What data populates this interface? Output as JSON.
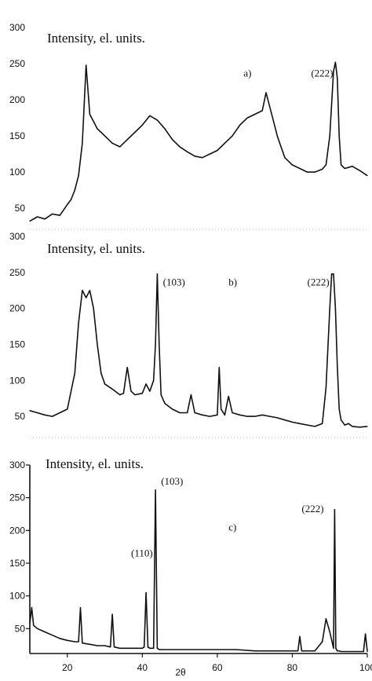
{
  "chart_data": [
    {
      "type": "line",
      "panel_label": "a)",
      "ylabel": "Intensity, el. units.",
      "yticks": [
        50,
        100,
        150,
        200,
        250,
        300
      ],
      "xlim": [
        10,
        100
      ],
      "ylim": [
        25,
        310
      ],
      "annotations": [
        {
          "text": "a)",
          "x": 67,
          "y": 232
        },
        {
          "text": "(222)",
          "x": 85,
          "y": 232
        }
      ],
      "series": [
        {
          "x": [
            10,
            12,
            14,
            16,
            18,
            20,
            21,
            22,
            23,
            24,
            25,
            26,
            27,
            28,
            30,
            32,
            34,
            36,
            38,
            40,
            42,
            44,
            46,
            48,
            50,
            52,
            54,
            56,
            58,
            60,
            62,
            64,
            66,
            68,
            70,
            72,
            73,
            74,
            75,
            76,
            78,
            80,
            82,
            84,
            86,
            88,
            89,
            90,
            91,
            91.5,
            92,
            92.5,
            93,
            94,
            96,
            98,
            100
          ],
          "y": [
            32,
            38,
            35,
            42,
            40,
            55,
            62,
            75,
            95,
            140,
            248,
            180,
            170,
            160,
            150,
            140,
            135,
            145,
            155,
            165,
            178,
            172,
            160,
            145,
            135,
            128,
            122,
            120,
            125,
            130,
            140,
            150,
            165,
            175,
            180,
            185,
            210,
            190,
            170,
            150,
            120,
            110,
            105,
            100,
            100,
            104,
            110,
            150,
            240,
            252,
            230,
            150,
            110,
            105,
            108,
            102,
            95
          ]
        }
      ]
    },
    {
      "type": "line",
      "panel_label": "b)",
      "ylabel": "Intensity, el. units.",
      "yticks": [
        50,
        100,
        150,
        200,
        250,
        300
      ],
      "xlim": [
        10,
        100
      ],
      "ylim": [
        25,
        310
      ],
      "annotations": [
        {
          "text": "(103)",
          "x": 45.5,
          "y": 232
        },
        {
          "text": "b)",
          "x": 63,
          "y": 232
        },
        {
          "text": "(222)",
          "x": 84,
          "y": 232
        }
      ],
      "series": [
        {
          "x": [
            10,
            12,
            14,
            16,
            18,
            20,
            22,
            23,
            24,
            25,
            26,
            27,
            28,
            29,
            30,
            32,
            34,
            35,
            36,
            37,
            38,
            40,
            41,
            42,
            43,
            43.5,
            44,
            44.5,
            45,
            46,
            48,
            50,
            52,
            53,
            54,
            56,
            58,
            60,
            60.5,
            61,
            62,
            63,
            64,
            66,
            68,
            70,
            72,
            74,
            76,
            78,
            80,
            82,
            84,
            86,
            88,
            89,
            90,
            90.5,
            91,
            91.5,
            92,
            92.5,
            93,
            94,
            95,
            96,
            98,
            100
          ],
          "y": [
            58,
            55,
            52,
            50,
            55,
            60,
            110,
            180,
            225,
            215,
            225,
            200,
            150,
            110,
            95,
            88,
            80,
            82,
            118,
            85,
            80,
            82,
            95,
            85,
            100,
            150,
            248,
            150,
            80,
            68,
            60,
            55,
            55,
            80,
            55,
            52,
            50,
            52,
            118,
            60,
            52,
            78,
            55,
            52,
            50,
            50,
            52,
            50,
            48,
            45,
            42,
            40,
            38,
            36,
            40,
            90,
            200,
            248,
            248,
            200,
            120,
            60,
            45,
            38,
            40,
            36,
            35,
            36
          ]
        }
      ]
    },
    {
      "type": "line",
      "panel_label": "c)",
      "ylabel": "Intensity, el. units.",
      "xlabel": "2θ",
      "xticks": [
        20,
        40,
        60,
        80,
        100
      ],
      "yticks": [
        50,
        100,
        150,
        200,
        250,
        300
      ],
      "xlim": [
        10,
        100
      ],
      "ylim": [
        12,
        300
      ],
      "annotations": [
        {
          "text": "(110)",
          "x": 37,
          "y": 160
        },
        {
          "text": "(103)",
          "x": 45,
          "y": 270
        },
        {
          "text": "c)",
          "x": 63,
          "y": 200
        },
        {
          "text": "(222)",
          "x": 82.5,
          "y": 228
        }
      ],
      "series": [
        {
          "x": [
            10,
            10.5,
            11,
            12,
            14,
            16,
            18,
            20,
            22,
            23,
            23.5,
            24,
            26,
            28,
            30,
            31.5,
            32,
            32.5,
            34,
            36,
            38,
            40,
            40.5,
            41,
            41.5,
            42,
            43,
            43.5,
            44,
            44.5,
            45,
            46,
            48,
            50,
            55,
            60,
            65,
            70,
            75,
            80,
            81.5,
            82,
            82.5,
            84,
            86,
            88,
            89,
            90,
            91,
            91.3,
            91.6,
            92,
            92.5,
            93,
            95,
            97,
            99,
            99.5,
            100
          ],
          "y": [
            58,
            82,
            55,
            50,
            45,
            40,
            35,
            32,
            30,
            30,
            82,
            28,
            26,
            24,
            24,
            22,
            72,
            22,
            20,
            20,
            20,
            20,
            22,
            105,
            22,
            20,
            20,
            262,
            20,
            18,
            18,
            18,
            18,
            18,
            18,
            18,
            18,
            16,
            16,
            16,
            16,
            38,
            16,
            16,
            16,
            30,
            65,
            45,
            20,
            232,
            20,
            16,
            16,
            15,
            15,
            15,
            15,
            42,
            15
          ]
        }
      ]
    }
  ]
}
